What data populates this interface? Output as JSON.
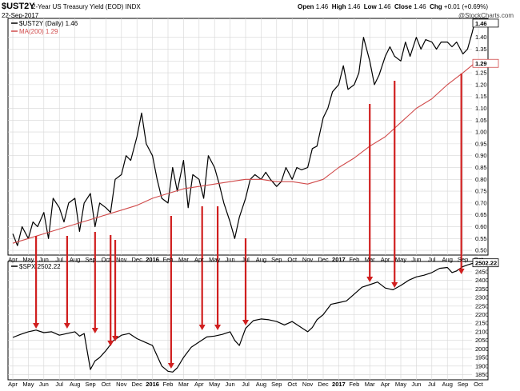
{
  "header": {
    "symbol": "$UST2Y",
    "description": "2-Year US Treasury Yield (EOD)",
    "exchange": "INDX",
    "date": "22-Sep-2017",
    "open_label": "Open",
    "open": "1.46",
    "high_label": "High",
    "high": "1.46",
    "low_label": "Low",
    "low": "1.46",
    "close_label": "Close",
    "close": "1.46",
    "chg_label": "Chg",
    "chg": "+0.01 (+0.69%)",
    "credit": "@StockCharts.com"
  },
  "colors": {
    "price_line": "#000000",
    "ma_line": "#d04a4a",
    "arrow": "#d01f1f",
    "grid": "#d6d6d6"
  },
  "chart_data": [
    {
      "type": "line",
      "legend": [
        {
          "label": "$UST2Y (Daily) 1.46",
          "color": "#000000"
        },
        {
          "label": "MA(200) 1.29",
          "color": "#d04a4a"
        }
      ],
      "last_value_badges": [
        "1.46",
        "1.29"
      ],
      "ylim": [
        0.48,
        1.48
      ],
      "y_ticks": [
        "0.50",
        "0.55",
        "0.60",
        "0.65",
        "0.70",
        "0.75",
        "0.80",
        "0.85",
        "0.90",
        "0.95",
        "1.00",
        "1.05",
        "1.10",
        "1.15",
        "1.20",
        "1.25",
        "1.30",
        "1.35",
        "1.40"
      ],
      "x_ticks": [
        "Apr",
        "May",
        "Jun",
        "Jul",
        "Aug",
        "Sep",
        "Oct",
        "Nov",
        "Dec",
        "2016",
        "Feb",
        "Mar",
        "Apr",
        "May",
        "Jun",
        "Jul",
        "Aug",
        "Sep",
        "Oct",
        "Nov",
        "Dec",
        "2017",
        "Feb",
        "Mar",
        "Apr",
        "May",
        "Jun",
        "Jul",
        "Aug",
        "Sep",
        "Oct"
      ],
      "series": [
        {
          "name": "$UST2Y (Daily)",
          "x": [
            0,
            0.3,
            0.6,
            1,
            1.3,
            1.6,
            2,
            2.3,
            2.6,
            3,
            3.3,
            3.6,
            4,
            4.3,
            4.6,
            5,
            5.3,
            5.6,
            6,
            6.3,
            6.6,
            7,
            7.3,
            7.6,
            8,
            8.3,
            8.6,
            9,
            9.3,
            9.6,
            10,
            10.3,
            10.6,
            11,
            11.3,
            11.6,
            12,
            12.3,
            12.6,
            13,
            13.3,
            13.6,
            14,
            14.3,
            14.6,
            15,
            15.3,
            15.6,
            16,
            16.3,
            16.6,
            17,
            17.3,
            17.6,
            18,
            18.3,
            18.6,
            19,
            19.3,
            19.6,
            20,
            20.3,
            20.6,
            21,
            21.3,
            21.6,
            22,
            22.3,
            22.6,
            23,
            23.3,
            23.6,
            24,
            24.3,
            24.6,
            25,
            25.3,
            25.6,
            26,
            26.3,
            26.6,
            27,
            27.3,
            27.6,
            28,
            28.3,
            28.6,
            29,
            29.3,
            29.6,
            29.75
          ],
          "values": [
            0.57,
            0.52,
            0.6,
            0.55,
            0.62,
            0.6,
            0.66,
            0.55,
            0.72,
            0.68,
            0.62,
            0.7,
            0.72,
            0.58,
            0.7,
            0.74,
            0.6,
            0.7,
            0.68,
            0.66,
            0.8,
            0.82,
            0.9,
            0.88,
            0.98,
            1.08,
            0.95,
            0.9,
            0.8,
            0.72,
            0.7,
            0.85,
            0.75,
            0.88,
            0.68,
            0.82,
            0.8,
            0.72,
            0.9,
            0.85,
            0.78,
            0.7,
            0.62,
            0.55,
            0.64,
            0.72,
            0.8,
            0.82,
            0.8,
            0.83,
            0.8,
            0.77,
            0.79,
            0.85,
            0.8,
            0.85,
            0.84,
            0.85,
            0.93,
            0.94,
            1.06,
            1.1,
            1.17,
            1.2,
            1.28,
            1.18,
            1.2,
            1.25,
            1.4,
            1.3,
            1.2,
            1.24,
            1.32,
            1.36,
            1.32,
            1.3,
            1.38,
            1.32,
            1.4,
            1.35,
            1.39,
            1.38,
            1.35,
            1.38,
            1.38,
            1.36,
            1.38,
            1.33,
            1.35,
            1.42,
            1.46
          ]
        },
        {
          "name": "MA(200)",
          "x": [
            0,
            1,
            2,
            3,
            4,
            5,
            6,
            7,
            8,
            9,
            10,
            11,
            12,
            13,
            14,
            15,
            16,
            17,
            18,
            19,
            20,
            21,
            22,
            23,
            24,
            25,
            26,
            27,
            28,
            29,
            29.75
          ],
          "values": [
            0.53,
            0.55,
            0.57,
            0.59,
            0.61,
            0.63,
            0.65,
            0.67,
            0.69,
            0.72,
            0.74,
            0.76,
            0.77,
            0.78,
            0.79,
            0.8,
            0.8,
            0.79,
            0.79,
            0.78,
            0.8,
            0.85,
            0.89,
            0.94,
            0.98,
            1.04,
            1.1,
            1.14,
            1.2,
            1.25,
            1.29
          ]
        }
      ]
    },
    {
      "type": "line",
      "legend": [
        {
          "label": "$SPX 2502.22",
          "color": "#000000"
        }
      ],
      "last_value_badges": [
        "2502.22"
      ],
      "ylim": [
        1820,
        2510
      ],
      "y_ticks": [
        "1850",
        "1900",
        "1950",
        "2000",
        "2050",
        "2100",
        "2150",
        "2200",
        "2250",
        "2300",
        "2350",
        "2400",
        "2450"
      ],
      "x_ticks": [
        "Apr",
        "May",
        "Jun",
        "Jul",
        "Aug",
        "Sep",
        "Oct",
        "Nov",
        "Dec",
        "2016",
        "Feb",
        "Mar",
        "Apr",
        "May",
        "Jun",
        "Jul",
        "Aug",
        "Sep",
        "Oct",
        "Nov",
        "Dec",
        "2017",
        "Feb",
        "Mar",
        "Apr",
        "May",
        "Jun",
        "Jul",
        "Aug",
        "Sep",
        "Oct"
      ],
      "series": [
        {
          "name": "$SPX",
          "x": [
            0,
            0.5,
            1,
            1.5,
            2,
            2.5,
            3,
            3.5,
            4,
            4.3,
            4.6,
            5,
            5.3,
            5.6,
            6,
            6.5,
            7,
            7.5,
            8,
            8.5,
            9,
            9.3,
            9.6,
            10,
            10.3,
            10.6,
            11,
            11.5,
            12,
            12.5,
            13,
            13.5,
            14,
            14.3,
            14.6,
            15,
            15.5,
            16,
            16.5,
            17,
            17.5,
            18,
            18.5,
            19,
            19.3,
            19.6,
            20,
            20.5,
            21,
            21.5,
            22,
            22.5,
            23,
            23.5,
            24,
            24.5,
            25,
            25.5,
            26,
            26.5,
            27,
            27.5,
            28,
            28.3,
            28.6,
            29,
            29.3,
            29.75
          ],
          "values": [
            2067,
            2085,
            2100,
            2110,
            2095,
            2100,
            2080,
            2090,
            2100,
            2075,
            2090,
            1880,
            1930,
            1950,
            1990,
            2050,
            2080,
            2090,
            2060,
            2040,
            2020,
            1960,
            1900,
            1870,
            1865,
            1890,
            1950,
            2010,
            2040,
            2070,
            2075,
            2085,
            2100,
            2050,
            2020,
            2120,
            2165,
            2175,
            2170,
            2160,
            2140,
            2160,
            2130,
            2100,
            2125,
            2170,
            2200,
            2260,
            2270,
            2280,
            2320,
            2360,
            2375,
            2390,
            2355,
            2345,
            2370,
            2400,
            2420,
            2430,
            2445,
            2470,
            2475,
            2445,
            2455,
            2480,
            2490,
            2502
          ]
        }
      ]
    }
  ]
}
